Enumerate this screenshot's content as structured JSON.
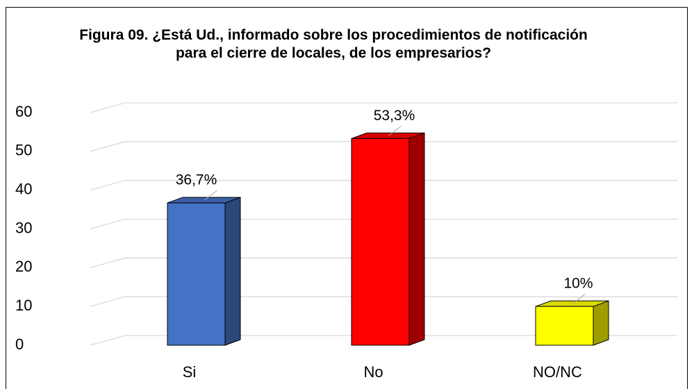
{
  "chart_data": {
    "type": "bar",
    "title": "Figura 09. ¿Está Ud., informado sobre los procedimientos de notificación para el cierre de locales, de los empresarios?",
    "categories": [
      "Si",
      "No",
      "NO/NC"
    ],
    "values": [
      36.7,
      53.3,
      10
    ],
    "value_labels": [
      "36,7%",
      "53,3%",
      "10%"
    ],
    "colors": [
      "#4472c4",
      "#ff0000",
      "#ffff00"
    ],
    "ylim": [
      0,
      60
    ],
    "yticks": [
      0,
      10,
      20,
      30,
      40,
      50,
      60
    ],
    "grid": true
  }
}
